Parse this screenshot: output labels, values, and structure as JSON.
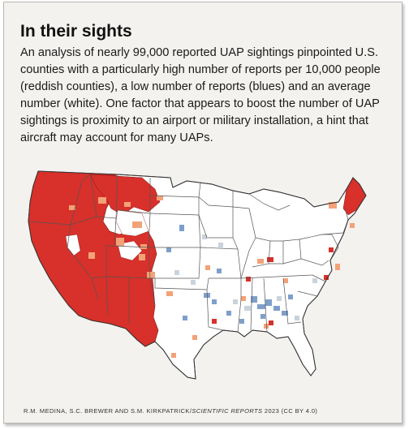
{
  "figure": {
    "title": "In their sights",
    "description": "An analysis of nearly 99,000 reported UAP sightings pinpointed U.S. counties with a particularly high number of reports per 10,000 people (reddish counties), a low number of reports (blues) and an average number (white). One factor that appears to boost the number of UAP sightings is proximity to an airport or military installation, a hint that aircraft may account for many UAPs.",
    "credit_pre": "R.M. MEDINA, S.C. BREWER AND S.M. KIRKPATRICK/",
    "credit_journal": "SCIENTIFIC REPORTS",
    "credit_post": " 2023 (CC BY 4.0)"
  },
  "colors": {
    "high": "#d8302a",
    "medium_high": "#f3a277",
    "average": "#ffffff",
    "low": "#7f9fcb",
    "very_low": "#c9d3dd",
    "borders": "#555555",
    "panel": "#f4f2ef"
  }
}
